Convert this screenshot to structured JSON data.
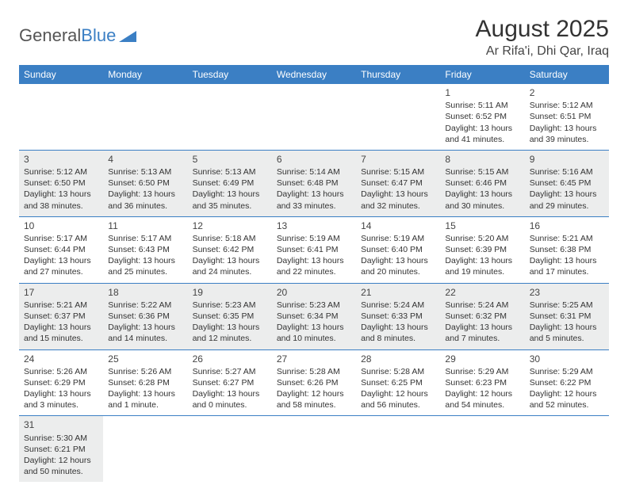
{
  "logo": {
    "text1": "General",
    "text2": "Blue"
  },
  "title": "August 2025",
  "location": "Ar Rifa'i, Dhi Qar, Iraq",
  "colors": {
    "header_bg": "#3b7fc4",
    "header_fg": "#ffffff",
    "alt_row_bg": "#eceded",
    "row_border": "#3b7fc4",
    "text": "#333333"
  },
  "days": [
    "Sunday",
    "Monday",
    "Tuesday",
    "Wednesday",
    "Thursday",
    "Friday",
    "Saturday"
  ],
  "weeks": [
    [
      null,
      null,
      null,
      null,
      null,
      {
        "n": "1",
        "sr": "Sunrise: 5:11 AM",
        "ss": "Sunset: 6:52 PM",
        "dl": "Daylight: 13 hours and 41 minutes."
      },
      {
        "n": "2",
        "sr": "Sunrise: 5:12 AM",
        "ss": "Sunset: 6:51 PM",
        "dl": "Daylight: 13 hours and 39 minutes."
      }
    ],
    [
      {
        "n": "3",
        "sr": "Sunrise: 5:12 AM",
        "ss": "Sunset: 6:50 PM",
        "dl": "Daylight: 13 hours and 38 minutes."
      },
      {
        "n": "4",
        "sr": "Sunrise: 5:13 AM",
        "ss": "Sunset: 6:50 PM",
        "dl": "Daylight: 13 hours and 36 minutes."
      },
      {
        "n": "5",
        "sr": "Sunrise: 5:13 AM",
        "ss": "Sunset: 6:49 PM",
        "dl": "Daylight: 13 hours and 35 minutes."
      },
      {
        "n": "6",
        "sr": "Sunrise: 5:14 AM",
        "ss": "Sunset: 6:48 PM",
        "dl": "Daylight: 13 hours and 33 minutes."
      },
      {
        "n": "7",
        "sr": "Sunrise: 5:15 AM",
        "ss": "Sunset: 6:47 PM",
        "dl": "Daylight: 13 hours and 32 minutes."
      },
      {
        "n": "8",
        "sr": "Sunrise: 5:15 AM",
        "ss": "Sunset: 6:46 PM",
        "dl": "Daylight: 13 hours and 30 minutes."
      },
      {
        "n": "9",
        "sr": "Sunrise: 5:16 AM",
        "ss": "Sunset: 6:45 PM",
        "dl": "Daylight: 13 hours and 29 minutes."
      }
    ],
    [
      {
        "n": "10",
        "sr": "Sunrise: 5:17 AM",
        "ss": "Sunset: 6:44 PM",
        "dl": "Daylight: 13 hours and 27 minutes."
      },
      {
        "n": "11",
        "sr": "Sunrise: 5:17 AM",
        "ss": "Sunset: 6:43 PM",
        "dl": "Daylight: 13 hours and 25 minutes."
      },
      {
        "n": "12",
        "sr": "Sunrise: 5:18 AM",
        "ss": "Sunset: 6:42 PM",
        "dl": "Daylight: 13 hours and 24 minutes."
      },
      {
        "n": "13",
        "sr": "Sunrise: 5:19 AM",
        "ss": "Sunset: 6:41 PM",
        "dl": "Daylight: 13 hours and 22 minutes."
      },
      {
        "n": "14",
        "sr": "Sunrise: 5:19 AM",
        "ss": "Sunset: 6:40 PM",
        "dl": "Daylight: 13 hours and 20 minutes."
      },
      {
        "n": "15",
        "sr": "Sunrise: 5:20 AM",
        "ss": "Sunset: 6:39 PM",
        "dl": "Daylight: 13 hours and 19 minutes."
      },
      {
        "n": "16",
        "sr": "Sunrise: 5:21 AM",
        "ss": "Sunset: 6:38 PM",
        "dl": "Daylight: 13 hours and 17 minutes."
      }
    ],
    [
      {
        "n": "17",
        "sr": "Sunrise: 5:21 AM",
        "ss": "Sunset: 6:37 PM",
        "dl": "Daylight: 13 hours and 15 minutes."
      },
      {
        "n": "18",
        "sr": "Sunrise: 5:22 AM",
        "ss": "Sunset: 6:36 PM",
        "dl": "Daylight: 13 hours and 14 minutes."
      },
      {
        "n": "19",
        "sr": "Sunrise: 5:23 AM",
        "ss": "Sunset: 6:35 PM",
        "dl": "Daylight: 13 hours and 12 minutes."
      },
      {
        "n": "20",
        "sr": "Sunrise: 5:23 AM",
        "ss": "Sunset: 6:34 PM",
        "dl": "Daylight: 13 hours and 10 minutes."
      },
      {
        "n": "21",
        "sr": "Sunrise: 5:24 AM",
        "ss": "Sunset: 6:33 PM",
        "dl": "Daylight: 13 hours and 8 minutes."
      },
      {
        "n": "22",
        "sr": "Sunrise: 5:24 AM",
        "ss": "Sunset: 6:32 PM",
        "dl": "Daylight: 13 hours and 7 minutes."
      },
      {
        "n": "23",
        "sr": "Sunrise: 5:25 AM",
        "ss": "Sunset: 6:31 PM",
        "dl": "Daylight: 13 hours and 5 minutes."
      }
    ],
    [
      {
        "n": "24",
        "sr": "Sunrise: 5:26 AM",
        "ss": "Sunset: 6:29 PM",
        "dl": "Daylight: 13 hours and 3 minutes."
      },
      {
        "n": "25",
        "sr": "Sunrise: 5:26 AM",
        "ss": "Sunset: 6:28 PM",
        "dl": "Daylight: 13 hours and 1 minute."
      },
      {
        "n": "26",
        "sr": "Sunrise: 5:27 AM",
        "ss": "Sunset: 6:27 PM",
        "dl": "Daylight: 13 hours and 0 minutes."
      },
      {
        "n": "27",
        "sr": "Sunrise: 5:28 AM",
        "ss": "Sunset: 6:26 PM",
        "dl": "Daylight: 12 hours and 58 minutes."
      },
      {
        "n": "28",
        "sr": "Sunrise: 5:28 AM",
        "ss": "Sunset: 6:25 PM",
        "dl": "Daylight: 12 hours and 56 minutes."
      },
      {
        "n": "29",
        "sr": "Sunrise: 5:29 AM",
        "ss": "Sunset: 6:23 PM",
        "dl": "Daylight: 12 hours and 54 minutes."
      },
      {
        "n": "30",
        "sr": "Sunrise: 5:29 AM",
        "ss": "Sunset: 6:22 PM",
        "dl": "Daylight: 12 hours and 52 minutes."
      }
    ],
    [
      {
        "n": "31",
        "sr": "Sunrise: 5:30 AM",
        "ss": "Sunset: 6:21 PM",
        "dl": "Daylight: 12 hours and 50 minutes."
      },
      null,
      null,
      null,
      null,
      null,
      null
    ]
  ]
}
